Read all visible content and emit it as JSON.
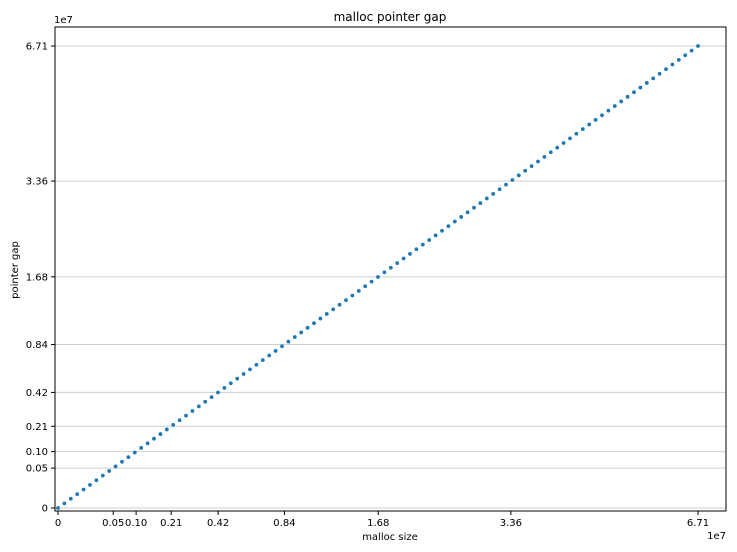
{
  "chart_data": {
    "type": "scatter",
    "title": "malloc pointer gap",
    "xlabel": "malloc size",
    "ylabel": "pointer gap",
    "x_offset_label": "1e7",
    "y_offset_label": "1e7",
    "x_ticks": [
      0,
      0.05,
      0.1,
      0.21,
      0.42,
      0.84,
      1.68,
      3.36,
      6.71
    ],
    "x_tick_labels": [
      "0",
      "0.05",
      "0.10",
      "0.21",
      "0.42",
      "0.84",
      "1.68",
      "3.36",
      "6.71"
    ],
    "y_ticks": [
      0,
      0.05,
      0.1,
      0.21,
      0.42,
      0.84,
      1.68,
      3.36,
      6.71
    ],
    "y_tick_labels": [
      "0",
      "0.05",
      "0.10",
      "0.21",
      "0.42",
      "0.84",
      "1.68",
      "3.36",
      "6.71"
    ],
    "xlim": [
      0,
      6.71
    ],
    "ylim": [
      0,
      6.71
    ],
    "scale": "sqrt",
    "grid": "y-major",
    "point_color": "#1f77b4",
    "series": [
      {
        "x_range": [
          0,
          6.71
        ],
        "point_count": 100,
        "relation": "y = x"
      }
    ]
  }
}
